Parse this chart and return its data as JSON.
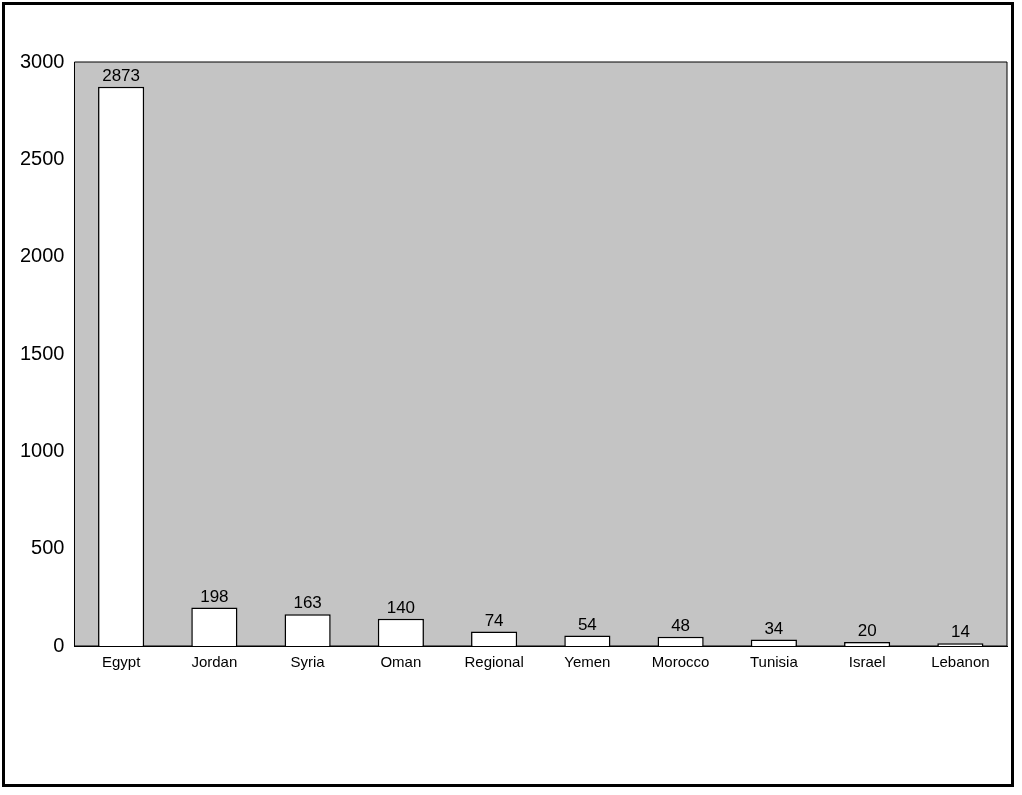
{
  "chart_data": {
    "type": "bar",
    "categories": [
      "Egypt",
      "Jordan",
      "Syria",
      "Oman",
      "Regional",
      "Yemen",
      "Morocco",
      "Tunisia",
      "Israel",
      "Lebanon"
    ],
    "values": [
      2873,
      198,
      163,
      140,
      74,
      54,
      48,
      34,
      20,
      14
    ],
    "color": "#ffffff",
    "ylim": [
      0,
      3000
    ],
    "yticks": [
      0,
      500,
      1000,
      1500,
      2000,
      2500,
      3000
    ],
    "grid": false,
    "legend": false,
    "data_labels": true
  }
}
